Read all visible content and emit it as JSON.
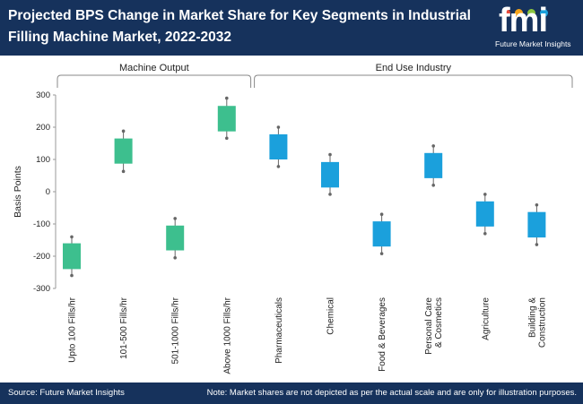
{
  "header": {
    "title": "Projected BPS Change in Market Share for Key Segments in Industrial Filling Machine Market, 2022-2032",
    "logo_mark": "fmi",
    "logo_text": "Future Market Insights"
  },
  "colors": {
    "header_bg": "#16325c",
    "machine_output": "#3dbf8e",
    "end_use": "#1ba0dc",
    "whisker": "#666666",
    "logo_dots": [
      "#e84c3d",
      "#f7a61c",
      "#8cc63f",
      "#1ba0dc"
    ]
  },
  "chart_data": {
    "type": "floating-box",
    "ylabel": "Basis Points",
    "ylim": [
      -300,
      300
    ],
    "yticks": [
      -300,
      -200,
      -100,
      0,
      100,
      200,
      300
    ],
    "groups": [
      {
        "label": "Machine Output",
        "start": 0,
        "end": 3
      },
      {
        "label": "End Use Industry",
        "start": 4,
        "end": 9
      }
    ],
    "series": [
      {
        "label": "Upto 100 Fills/hr",
        "group": 0,
        "low": -240,
        "high": -160,
        "min": -260,
        "max": -140
      },
      {
        "label": "101-500 Fills/hr",
        "group": 0,
        "low": 87,
        "high": 165,
        "min": 63,
        "max": 188
      },
      {
        "label": "501-1000 Fills/hr",
        "group": 0,
        "low": -182,
        "high": -105,
        "min": -205,
        "max": -83
      },
      {
        "label": "Above 1000 Fills/hr",
        "group": 0,
        "low": 187,
        "high": 266,
        "min": 166,
        "max": 290
      },
      {
        "label": "Pharmaceuticals",
        "group": 1,
        "low": 100,
        "high": 178,
        "min": 78,
        "max": 200
      },
      {
        "label": "Chemical",
        "group": 1,
        "low": 13,
        "high": 92,
        "min": -8,
        "max": 115
      },
      {
        "label": "Food & Beverages",
        "group": 1,
        "low": -170,
        "high": -92,
        "min": -192,
        "max": -70
      },
      {
        "label": "Personal Care & Cosmetics",
        "group": 1,
        "low": 42,
        "high": 120,
        "min": 20,
        "max": 142
      },
      {
        "label": "Agriculture",
        "group": 1,
        "low": -108,
        "high": -30,
        "min": -130,
        "max": -8
      },
      {
        "label": "Building & Construction",
        "group": 1,
        "low": -142,
        "high": -63,
        "min": -164,
        "max": -41
      }
    ],
    "tick_lines": [
      [
        "Upto 100 Fills/hr"
      ],
      [
        "101-500 Fills/hr"
      ],
      [
        "501-1000 Fills/hr"
      ],
      [
        "Above 1000 Fills/hr"
      ],
      [
        "Pharmaceuticals"
      ],
      [
        "Chemical"
      ],
      [
        "Food & Beverages"
      ],
      [
        "Personal Care",
        "& Cosmetics"
      ],
      [
        "Agriculture"
      ],
      [
        "Building &",
        "Construction"
      ]
    ]
  },
  "footer": {
    "source": "Source: Future Market Insights",
    "note": "Note: Market shares are not depicted as per the actual scale and are only for illustration purposes."
  }
}
